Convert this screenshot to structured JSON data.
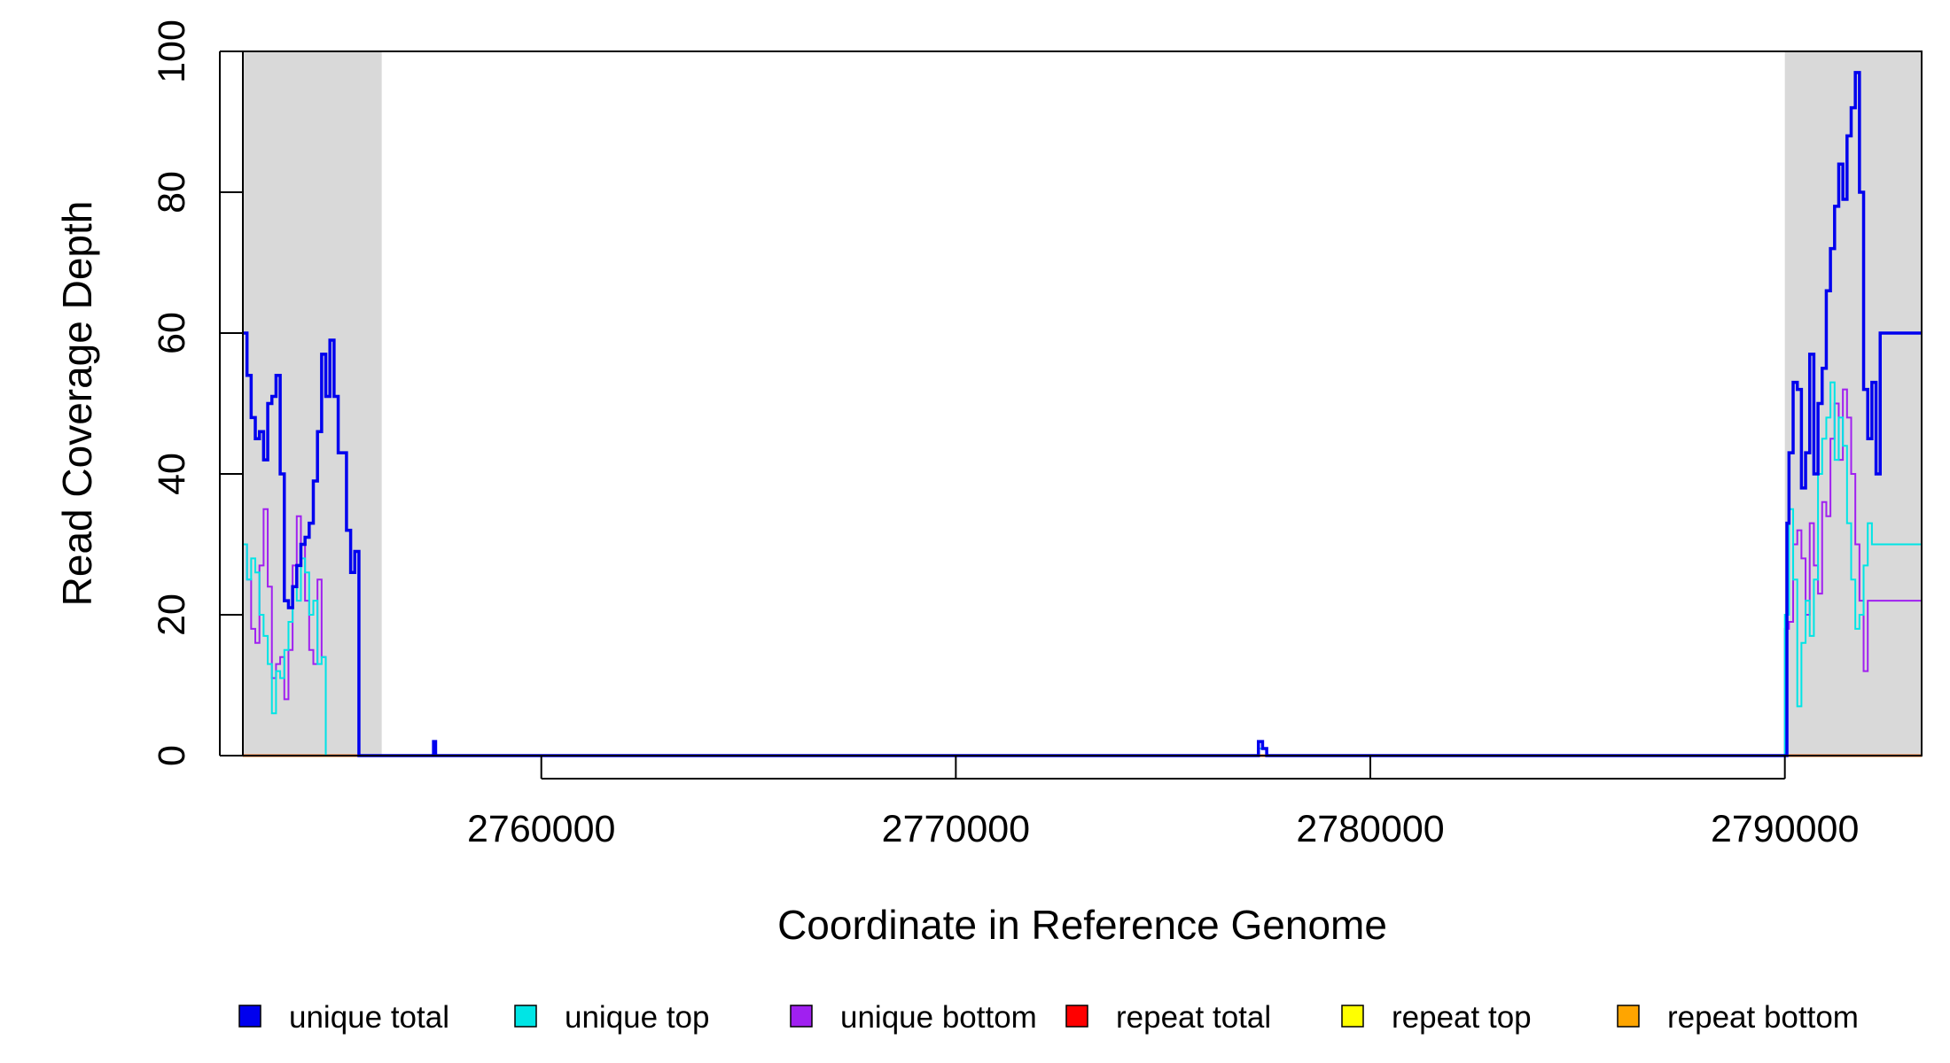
{
  "chart_data": {
    "type": "line",
    "title": "",
    "xlabel": "Coordinate in Reference Genome",
    "ylabel": "Read Coverage Depth",
    "xlim": [
      2752800,
      2793300
    ],
    "ylim": [
      0,
      100
    ],
    "xticks": [
      2760000,
      2770000,
      2780000,
      2790000
    ],
    "xtick_labels": [
      "2760000",
      "2770000",
      "2780000",
      "2790000"
    ],
    "yticks": [
      0,
      20,
      40,
      60,
      80,
      100
    ],
    "ytick_labels": [
      "0",
      "20",
      "40",
      "60",
      "80",
      "100"
    ],
    "shaded_regions": [
      [
        2752800,
        2756150
      ],
      [
        2790000,
        2793300
      ]
    ],
    "shade_color": "#d9d9d9",
    "legend_position": "bottom",
    "series": [
      {
        "name": "unique total",
        "color": "#0000ee",
        "x": [
          2752800,
          2752900,
          2753000,
          2753100,
          2753200,
          2753300,
          2753400,
          2753500,
          2753600,
          2753700,
          2753800,
          2753900,
          2754000,
          2754100,
          2754200,
          2754300,
          2754400,
          2754500,
          2754600,
          2754700,
          2754800,
          2754900,
          2755000,
          2755100,
          2755200,
          2755300,
          2755400,
          2755500,
          2755600,
          2755700,
          2755800,
          2755900,
          2756000,
          2756100,
          2756150,
          2756200,
          2757400,
          2757450,
          2757500,
          2777200,
          2777300,
          2777400,
          2777500,
          2777600,
          2790000,
          2790050,
          2790100,
          2790200,
          2790300,
          2790400,
          2790500,
          2790600,
          2790700,
          2790800,
          2790900,
          2791000,
          2791100,
          2791200,
          2791300,
          2791400,
          2791500,
          2791600,
          2791700,
          2791800,
          2791900,
          2792000,
          2792100,
          2792200,
          2792300,
          2792400,
          2792500,
          2792600,
          2792700,
          2792800,
          2792900,
          2793000,
          2793100,
          2793200,
          2793300
        ],
        "values": [
          60,
          54,
          48,
          45,
          46,
          42,
          50,
          51,
          54,
          40,
          22,
          21,
          24,
          27,
          30,
          31,
          33,
          39,
          46,
          57,
          51,
          59,
          51,
          43,
          43,
          32,
          26,
          29,
          0,
          0,
          0,
          0,
          0,
          0,
          0,
          0,
          2,
          0,
          0,
          0,
          2,
          1,
          0,
          0,
          0,
          33,
          43,
          53,
          52,
          38,
          43,
          57,
          40,
          50,
          55,
          66,
          72,
          78,
          84,
          79,
          88,
          92,
          97,
          80,
          52,
          45,
          53,
          40,
          60,
          60,
          60,
          60,
          60,
          60,
          60,
          60,
          60,
          60,
          60
        ]
      },
      {
        "name": "unique top",
        "color": "#00e5e5",
        "x": [
          2752800,
          2752900,
          2753000,
          2753100,
          2753200,
          2753300,
          2753400,
          2753500,
          2753600,
          2753700,
          2753800,
          2753900,
          2754000,
          2754100,
          2754200,
          2754300,
          2754400,
          2754500,
          2754600,
          2754700,
          2754800,
          2754900,
          2755000,
          2755100,
          2755200,
          2755300,
          2755400,
          2755500,
          2755600,
          2756150,
          2757400,
          2777200,
          2777300,
          2777400,
          2777500,
          2777600,
          2790000,
          2790100,
          2790200,
          2790300,
          2790400,
          2790500,
          2790600,
          2790700,
          2790800,
          2790900,
          2791000,
          2791100,
          2791200,
          2791300,
          2791400,
          2791500,
          2791600,
          2791700,
          2791800,
          2791900,
          2792000,
          2792100,
          2792200,
          2792300,
          2792400,
          2792500,
          2792600,
          2792700,
          2792800,
          2792900,
          2793000,
          2793100,
          2793200,
          2793300
        ],
        "values": [
          30,
          25,
          28,
          26,
          20,
          17,
          13,
          6,
          12,
          11,
          15,
          19,
          24,
          22,
          28,
          26,
          20,
          22,
          13,
          14,
          0,
          0,
          0,
          0,
          0,
          0,
          0,
          0,
          0,
          0,
          0,
          0,
          1,
          1,
          0,
          0,
          20,
          35,
          25,
          7,
          16,
          22,
          17,
          25,
          40,
          45,
          48,
          53,
          42,
          48,
          44,
          33,
          25,
          18,
          20,
          27,
          33,
          30,
          30,
          30,
          30,
          30,
          30,
          30,
          30,
          30,
          30,
          30,
          30,
          30
        ]
      },
      {
        "name": "unique bottom",
        "color": "#a020f0",
        "x": [
          2752800,
          2752900,
          2753000,
          2753100,
          2753200,
          2753300,
          2753400,
          2753500,
          2753600,
          2753700,
          2753800,
          2753900,
          2754000,
          2754100,
          2754200,
          2754300,
          2754400,
          2754500,
          2754600,
          2754700,
          2754800,
          2754900,
          2755000,
          2755100,
          2755200,
          2755300,
          2755400,
          2755500,
          2755600,
          2756150,
          2757400,
          2777200,
          2777300,
          2777400,
          2777500,
          2777600,
          2790000,
          2790100,
          2790200,
          2790300,
          2790400,
          2790500,
          2790600,
          2790700,
          2790800,
          2790900,
          2791000,
          2791100,
          2791200,
          2791300,
          2791400,
          2791500,
          2791600,
          2791700,
          2791800,
          2791900,
          2792000,
          2792100,
          2792200,
          2792300,
          2792400,
          2792500,
          2792600,
          2792700,
          2792800,
          2792900,
          2793000,
          2793100,
          2793200,
          2793300
        ],
        "values": [
          30,
          25,
          18,
          16,
          27,
          35,
          24,
          11,
          13,
          14,
          8,
          15,
          27,
          34,
          30,
          22,
          15,
          13,
          25,
          14,
          0,
          0,
          0,
          0,
          0,
          0,
          0,
          0,
          0,
          0,
          0,
          0,
          1,
          1,
          0,
          0,
          18,
          19,
          30,
          32,
          28,
          20,
          33,
          27,
          23,
          36,
          34,
          45,
          50,
          42,
          52,
          48,
          40,
          30,
          22,
          12,
          22,
          22,
          22,
          22,
          22,
          22,
          22,
          22,
          22,
          22,
          22,
          22,
          22,
          22
        ]
      },
      {
        "name": "repeat total",
        "color": "#ff0000",
        "x": [
          2752800,
          2793300
        ],
        "values": [
          0,
          0
        ]
      },
      {
        "name": "repeat top",
        "color": "#ffff00",
        "x": [
          2752800,
          2793300
        ],
        "values": [
          0,
          0
        ]
      },
      {
        "name": "repeat bottom",
        "color": "#ffa500",
        "x": [
          2752800,
          2793300
        ],
        "values": [
          0,
          0
        ]
      }
    ]
  }
}
